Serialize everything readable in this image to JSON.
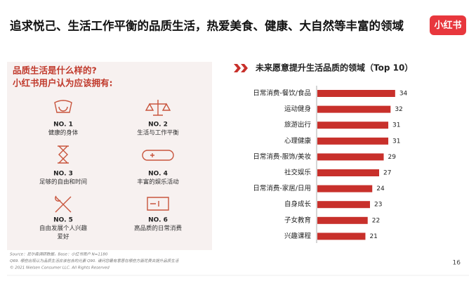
{
  "header": {
    "title": "追求悦己、生活工作平衡的品质生活，热爱美食、健康、大自然等丰富的领域",
    "logo": "小红书"
  },
  "panel": {
    "heading": [
      "品质生活是什么样的?",
      "小红书用户认为应该拥有:"
    ],
    "items": [
      {
        "no": "NO. 1",
        "lines": [
          "健康的身体"
        ]
      },
      {
        "no": "NO. 2",
        "lines": [
          "生活与工作平衡"
        ]
      },
      {
        "no": "NO. 3",
        "lines": [
          "足够的自由和时间"
        ]
      },
      {
        "no": "NO. 4",
        "lines": [
          "丰富的娱乐活动"
        ]
      },
      {
        "no": "NO. 5",
        "lines": [
          "自由发展个人兴趣",
          "爱好"
        ]
      },
      {
        "no": "NO. 6",
        "lines": [
          "高品质的日常消费"
        ]
      }
    ]
  },
  "chart_data": {
    "type": "bar",
    "orientation": "horizontal",
    "title": "未来愿意提升生活品质的领域（Top 10）",
    "categories": [
      "日常消费-餐饮/食品",
      "运动健身",
      "旅游出行",
      "心理健康",
      "日常消费-服饰/美妆",
      "社交娱乐",
      "日常消费-家居/日用",
      "自身成长",
      "子女教育",
      "兴趣课程"
    ],
    "values": [
      34,
      32,
      31,
      31,
      29,
      27,
      24,
      23,
      22,
      21
    ],
    "color": "#c8302b"
  },
  "footer": {
    "notes": [
      "Source：尼尔森调研数据，Base：小红书用户 N=1180",
      "Q69. 哪些出现认为品质生活应该包含的元素 Q90. 请问您最有意愿在哪些方面花费去提升品质生活",
      "© 2021 Nielsen Consumer LLC. All Rights Reserved"
    ],
    "page": "16"
  }
}
